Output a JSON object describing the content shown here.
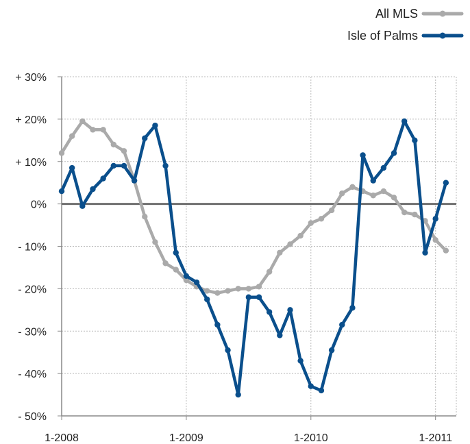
{
  "chart_data": {
    "type": "line",
    "x": [
      "1-2008",
      "2-2008",
      "3-2008",
      "4-2008",
      "5-2008",
      "6-2008",
      "7-2008",
      "8-2008",
      "9-2008",
      "10-2008",
      "11-2008",
      "12-2008",
      "1-2009",
      "2-2009",
      "3-2009",
      "4-2009",
      "5-2009",
      "6-2009",
      "7-2009",
      "8-2009",
      "9-2009",
      "10-2009",
      "11-2009",
      "12-2009",
      "1-2010",
      "2-2010",
      "3-2010",
      "4-2010",
      "5-2010",
      "6-2010",
      "7-2010",
      "8-2010",
      "9-2010",
      "10-2010",
      "11-2010",
      "12-2010",
      "1-2011",
      "2-2011",
      "3-2011"
    ],
    "x_tick_labels": [
      "1-2008",
      "1-2009",
      "1-2010",
      "1-2011"
    ],
    "y_tick_labels": [
      "+ 30%",
      "+ 20%",
      "+ 10%",
      "0%",
      "- 10%",
      "- 20%",
      "- 30%",
      "- 40%",
      "- 50%"
    ],
    "y_ticks": [
      30,
      20,
      10,
      0,
      -10,
      -20,
      -30,
      -40,
      -50
    ],
    "ylim": [
      -50,
      30
    ],
    "grid": true,
    "legend_position": "top-right",
    "series": [
      {
        "name": "All MLS",
        "color": "#aaaaaa",
        "values": [
          12,
          16,
          19.5,
          17.5,
          17.5,
          14,
          12.5,
          5.5,
          -3,
          -9,
          -14,
          -15.5,
          -18,
          -19.5,
          -20.5,
          -21,
          -20.5,
          -20,
          -20,
          -19.5,
          -16,
          -11.5,
          -9.5,
          -7.5,
          -4.5,
          -3.5,
          -1.5,
          2.5,
          4,
          3,
          2,
          3,
          1.5,
          -2,
          -2.5,
          -4,
          -8.5,
          -11,
          null
        ]
      },
      {
        "name": "Isle of Palms",
        "color": "#0a4f8c",
        "values": [
          3,
          8.5,
          -0.5,
          3.5,
          6,
          9,
          9,
          5.5,
          15.5,
          18.5,
          9,
          -11.5,
          -17,
          -18.5,
          -22.5,
          -28.5,
          -34.5,
          -45,
          -22,
          -22,
          -25.5,
          -31,
          -25,
          -37,
          -43,
          -44,
          -34.5,
          -28.5,
          -24.5,
          11.5,
          5.5,
          8.5,
          12,
          19.5,
          15,
          -11.5,
          -3.5,
          5,
          null
        ]
      }
    ]
  }
}
